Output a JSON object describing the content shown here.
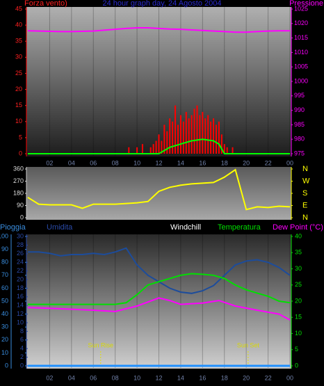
{
  "chart_data": [
    {
      "type": "line",
      "title": "24 hour graph day, 24 Agosto 2004",
      "y_label": "Forza vento)",
      "y2_label": "Pressione",
      "xlim": [
        0,
        24
      ],
      "xticks": [
        {
          "value": 2,
          "label": "02"
        },
        {
          "value": 4,
          "label": "04"
        },
        {
          "value": 6,
          "label": "06"
        },
        {
          "value": 8,
          "label": "08"
        },
        10,
        12,
        14,
        16,
        18,
        20,
        22,
        {
          "value": 24,
          "label": "00"
        }
      ],
      "ylim": [
        0,
        45
      ],
      "yticks": [
        0,
        5,
        10,
        15,
        20,
        25,
        30,
        35,
        40,
        45
      ],
      "y2lim": [
        975,
        1025
      ],
      "y2ticks": [
        975,
        980,
        985,
        990,
        995,
        1000,
        1005,
        1010,
        1015,
        1020,
        1025
      ],
      "series": [
        {
          "color": "#ff0000",
          "style": "spikes",
          "x": [
            9,
            9.25,
            9.5,
            9.75,
            10,
            10.25,
            10.5,
            10.75,
            11,
            11.25,
            11.5,
            11.75,
            12,
            12.25,
            12.5,
            12.75,
            13,
            13.25,
            13.5,
            13.75,
            14,
            14.25,
            14.5,
            14.75,
            15,
            15.25,
            15.5,
            15.75,
            16,
            16.25,
            16.5,
            16.75,
            17,
            17.25,
            17.5,
            17.75,
            18,
            18.25,
            18.5,
            18.75,
            19
          ],
          "values": [
            0,
            2,
            0,
            0,
            2,
            0,
            3,
            0,
            0,
            2,
            3,
            4,
            6,
            4,
            9,
            7,
            11,
            10,
            15,
            9,
            12,
            10,
            13,
            11,
            12,
            14,
            15,
            12,
            13,
            11,
            12,
            10,
            11,
            9,
            10,
            6,
            3,
            2,
            0,
            2,
            0
          ]
        },
        {
          "color": "#00ff00",
          "x": [
            0,
            12,
            12.5,
            13,
            14,
            15,
            16,
            17,
            17.5,
            18,
            24
          ],
          "values": [
            0,
            0,
            1,
            2,
            3,
            4,
            4.5,
            4,
            3,
            0,
            0
          ]
        },
        {
          "color": "#ff00ff",
          "axis": "y2",
          "x": [
            0,
            1,
            2,
            3,
            4,
            5,
            6,
            7,
            8,
            9,
            10,
            11,
            12,
            13,
            14,
            15,
            16,
            17,
            18,
            19,
            20,
            21,
            22,
            23,
            24
          ],
          "values": [
            1017.5,
            1017.4,
            1017.3,
            1017.2,
            1017.2,
            1017.3,
            1017.4,
            1017.7,
            1018,
            1018.3,
            1018.5,
            1018.5,
            1018.3,
            1018.1,
            1018,
            1017.8,
            1017.6,
            1017.4,
            1017.2,
            1017,
            1017,
            1017.2,
            1017.4,
            1017.5,
            1017.5
          ]
        }
      ]
    },
    {
      "type": "line",
      "xlim": [
        0,
        24
      ],
      "ylim": [
        0,
        360
      ],
      "yticks": [
        0,
        90,
        180,
        270,
        360
      ],
      "y2lim": [
        0,
        360
      ],
      "y2ticks": [
        {
          "value": 0,
          "label": "N"
        },
        {
          "value": 90,
          "label": "E"
        },
        {
          "value": 180,
          "label": "S"
        },
        {
          "value": 270,
          "label": "W"
        },
        {
          "value": 360,
          "label": "N"
        }
      ],
      "series": [
        {
          "color": "#ffff00",
          "x": [
            0,
            1,
            2,
            3,
            4,
            5,
            6,
            7,
            8,
            9,
            10,
            11,
            12,
            13,
            14,
            15,
            16,
            17,
            18,
            19,
            20,
            21,
            22,
            23,
            24
          ],
          "values": [
            150,
            100,
            95,
            95,
            95,
            70,
            100,
            100,
            100,
            105,
            110,
            120,
            195,
            225,
            240,
            250,
            255,
            260,
            300,
            355,
            60,
            80,
            75,
            85,
            80
          ]
        }
      ]
    },
    {
      "type": "line",
      "xlim": [
        0,
        24
      ],
      "xticks": [
        {
          "value": 2,
          "label": "02"
        },
        {
          "value": 4,
          "label": "04"
        },
        {
          "value": 6,
          "label": "06"
        },
        {
          "value": 8,
          "label": "08"
        },
        10,
        12,
        14,
        16,
        18,
        20,
        22,
        {
          "value": 24,
          "label": "00"
        }
      ],
      "labels": [
        {
          "text": "Pioggia",
          "color": "#3a8ee0"
        },
        {
          "text": "Umidita",
          "color": "#2a4aa8"
        },
        {
          "text": "Windchill",
          "color": "#ffffff"
        },
        {
          "text": "Temperatura",
          "color": "#00e000"
        },
        {
          "text": "Dew Point (°C)",
          "color": "#ff00ff"
        }
      ],
      "ylim": [
        0,
        100
      ],
      "yticks": [
        0,
        10,
        20,
        30,
        40,
        50,
        60,
        70,
        80,
        90,
        100
      ],
      "rain_lim": [
        0,
        30
      ],
      "rain_ticks": [
        0,
        2,
        4,
        6,
        8,
        10,
        12,
        14,
        16,
        18,
        20,
        22,
        24,
        26,
        28,
        30
      ],
      "y2lim": [
        0,
        40
      ],
      "y2ticks": [
        0,
        5,
        10,
        15,
        20,
        25,
        30,
        35,
        40
      ],
      "annotations": [
        {
          "text": "Sun Rise",
          "x": 6.67
        },
        {
          "text": "Sun Set",
          "x": 20.17
        }
      ],
      "series": [
        {
          "color": "#2090ff",
          "axis": "rain",
          "x": [
            0,
            24
          ],
          "values": [
            0,
            0
          ]
        },
        {
          "color": "#1c4c9c",
          "axis": "y",
          "x": [
            0,
            1,
            2,
            3,
            4,
            5,
            6,
            7,
            8,
            9,
            10,
            11,
            12,
            13,
            14,
            15,
            16,
            17,
            18,
            19,
            20,
            21,
            22,
            23,
            24
          ],
          "values": [
            88,
            88,
            87,
            85,
            86,
            86,
            87,
            86,
            88,
            91,
            78,
            70,
            65,
            60,
            57,
            56,
            58,
            62,
            70,
            78,
            81,
            82,
            80,
            76,
            70
          ]
        },
        {
          "color": "#00e000",
          "axis": "y2",
          "x": [
            0,
            1,
            2,
            3,
            4,
            5,
            6,
            7,
            8,
            9,
            10,
            11,
            12,
            13,
            14,
            15,
            16,
            17,
            18,
            19,
            20,
            21,
            22,
            23,
            24
          ],
          "values": [
            19,
            19,
            19,
            19,
            19,
            19,
            19,
            19,
            19,
            19.5,
            22,
            25,
            26,
            27,
            28,
            28.5,
            28.3,
            28,
            27,
            25,
            23.5,
            22.5,
            21.5,
            20,
            19.5
          ]
        },
        {
          "color": "#ff00ff",
          "axis": "y2",
          "x": [
            0,
            2,
            4,
            6,
            8,
            10,
            12,
            13,
            14,
            16,
            17.5,
            19,
            21,
            23,
            24
          ],
          "values": [
            18,
            17.8,
            17.5,
            17.2,
            16.8,
            18.5,
            21,
            20.2,
            19,
            19.4,
            20.2,
            18.5,
            17.2,
            16,
            14.2
          ]
        }
      ]
    }
  ]
}
